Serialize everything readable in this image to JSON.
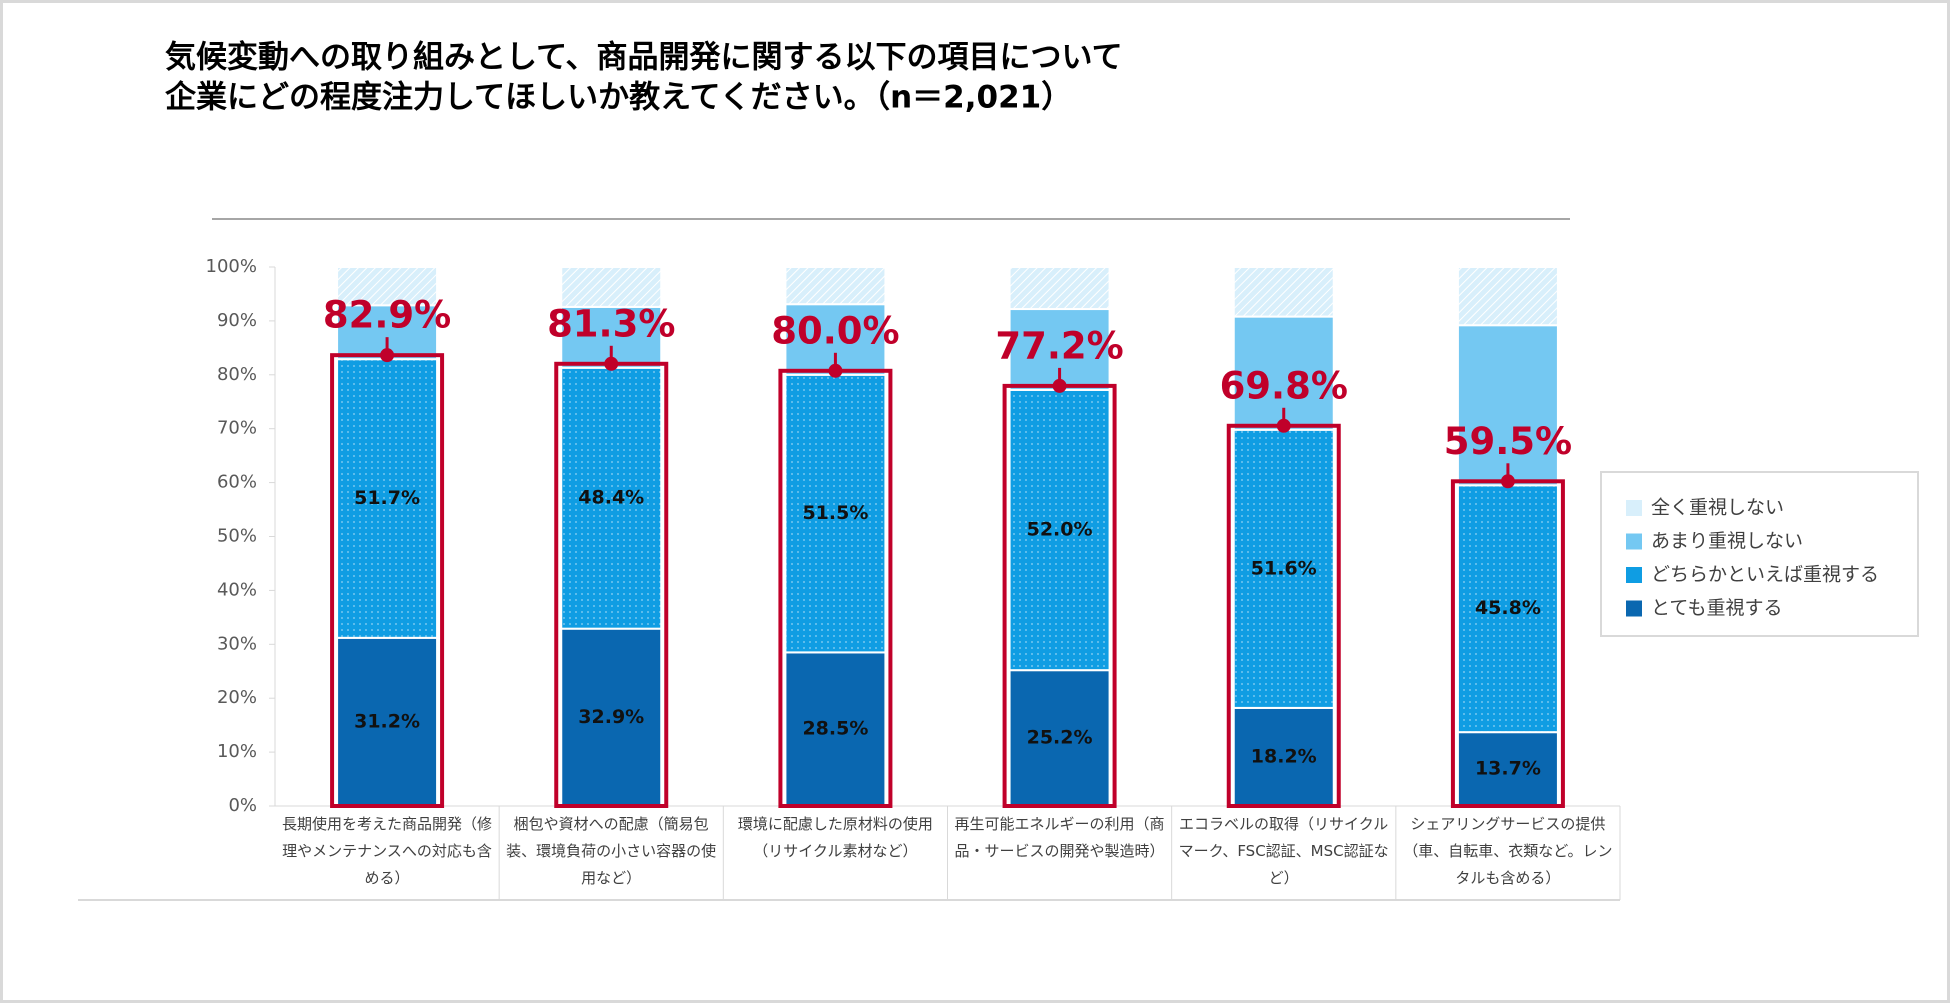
{
  "chart_data": {
    "type": "stacked_bar",
    "title": [
      "気候変動への取り組みとして、商品開発に関する以下の項目について",
      "企業にどの程度注力してほしいか教えてください。（n＝2,021）"
    ],
    "categories": [
      "長期使用を考えた商品開発（修理やメンテナンスへの対応も含める）",
      "梱包や資材への配慮（簡易包装、環境負荷の小さい容器の使用など）",
      "環境に配慮した原材料の使用（リサイクル素材など）",
      "再生可能エネルギーの利用（商品・サービスの開発や製造時）",
      "エコラベルの取得（リサイクルマーク、FSC認証、MSC認証など）",
      "シェアリングサービスの提供（車、自転車、衣類など。レンタルも含める）"
    ],
    "series": [
      {
        "name": "とても重視する",
        "color": "#0a67b0",
        "values": [
          31.2,
          32.9,
          28.5,
          25.2,
          18.2,
          13.7
        ],
        "value_labels": [
          "31.2%",
          "32.9%",
          "28.5%",
          "25.2%",
          "18.2%",
          "13.7%"
        ]
      },
      {
        "name": "どちらかといえば重視する",
        "color": "#0f9de3",
        "values": [
          51.7,
          48.4,
          51.5,
          52.0,
          51.6,
          45.8
        ],
        "value_labels": [
          "51.7%",
          "48.4%",
          "51.5%",
          "52.0%",
          "51.6%",
          "45.8%"
        ]
      },
      {
        "name": "あまり重視しない",
        "color": "#74c8f2",
        "values": [
          10.0,
          11.3,
          13.1,
          15.0,
          21.0,
          29.7
        ]
      },
      {
        "name": "全く重視しない",
        "color": "#d8effb",
        "values": [
          7.1,
          7.4,
          6.9,
          7.8,
          9.2,
          10.8
        ]
      }
    ],
    "highlight_totals": {
      "color": "#c0002a",
      "values": [
        82.9,
        81.3,
        80.0,
        77.2,
        69.8,
        59.5
      ],
      "value_labels": [
        "82.9%",
        "81.3%",
        "80.0%",
        "77.2%",
        "69.8%",
        "59.5%"
      ]
    },
    "ylim": [
      0,
      100
    ],
    "yticks": [
      {
        "value": 0,
        "label": "0%"
      },
      {
        "value": 10,
        "label": "10%"
      },
      {
        "value": 20,
        "label": "20%"
      },
      {
        "value": 30,
        "label": "30%"
      },
      {
        "value": 40,
        "label": "40%"
      },
      {
        "value": 50,
        "label": "50%"
      },
      {
        "value": 60,
        "label": "60%"
      },
      {
        "value": 70,
        "label": "70%"
      },
      {
        "value": 80,
        "label": "80%"
      },
      {
        "value": 90,
        "label": "90%"
      },
      {
        "value": 100,
        "label": "100%"
      }
    ],
    "legend": "right"
  }
}
